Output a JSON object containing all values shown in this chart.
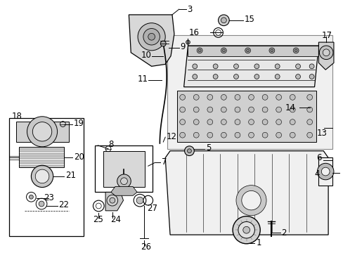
{
  "bg_color": "#ffffff",
  "line_color": "#000000",
  "font_size": 8.5,
  "label_color": "#000000",
  "gray_fill": "#e0e0e0",
  "light_gray": "#f0f0f0",
  "box_fill": "#ffffff",
  "hatched_fill": "#d8d8d8"
}
